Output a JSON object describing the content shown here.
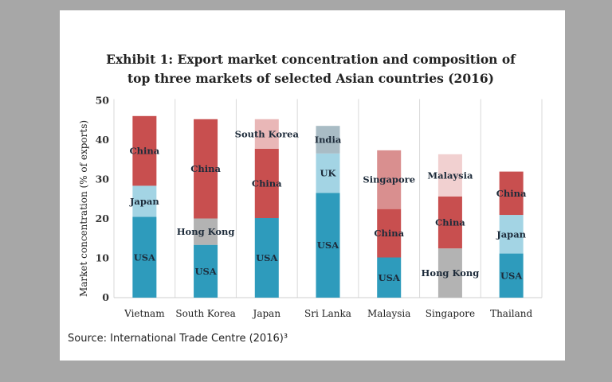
{
  "chart_data": {
    "type": "bar",
    "stacked": true,
    "title": [
      "Exhibit 1: Export market concentration and composition of",
      "top three markets of selected Asian countries (2016)"
    ],
    "xlabel": "",
    "ylabel": "Market concentration (% of exports)",
    "ylim": [
      0,
      50
    ],
    "yticks": [
      "0",
      "10",
      "20",
      "30",
      "40",
      "50"
    ],
    "grid": false,
    "categories": [
      "Vietnam",
      "South Korea",
      "Japan",
      "Sri Lanka",
      "Malaysia",
      "Singapore",
      "Thailand"
    ],
    "stacks": [
      [
        {
          "label": "USA",
          "value": 20.5
        },
        {
          "label": "Japan",
          "value": 7.9
        },
        {
          "label": "China",
          "value": 17.7
        }
      ],
      [
        {
          "label": "USA",
          "value": 13.4
        },
        {
          "label": "Hong Kong",
          "value": 6.7
        },
        {
          "label": "China",
          "value": 25.2
        }
      ],
      [
        {
          "label": "USA",
          "value": 20.2
        },
        {
          "label": "China",
          "value": 17.6
        },
        {
          "label": "South Korea",
          "value": 7.5
        }
      ],
      [
        {
          "label": "USA",
          "value": 26.6
        },
        {
          "label": "UK",
          "value": 10.0
        },
        {
          "label": "India",
          "value": 7.0
        }
      ],
      [
        {
          "label": "USA",
          "value": 10.2
        },
        {
          "label": "China",
          "value": 12.3
        },
        {
          "label": "Singapore",
          "value": 14.9
        }
      ],
      [
        {
          "label": "Hong Kong",
          "value": 12.5
        },
        {
          "label": "China",
          "value": 13.2
        },
        {
          "label": "Malaysia",
          "value": 10.7
        }
      ],
      [
        {
          "label": "USA",
          "value": 11.2
        },
        {
          "label": "Japan",
          "value": 9.8
        },
        {
          "label": "China",
          "value": 11.0
        }
      ]
    ],
    "colors": {
      "USA": "#2e9bbc",
      "Japan": "#a3d4e4",
      "UK": "#a3d4e4",
      "China": "#c84f4f",
      "South Korea": "#e9b7b7",
      "Singapore": "#d98f8f",
      "Malaysia": "#f1d0d0",
      "Hong Kong": "#b3b3b3",
      "India": "#a9bcc5"
    }
  },
  "source": "Source: International Trade Centre (2016)³"
}
